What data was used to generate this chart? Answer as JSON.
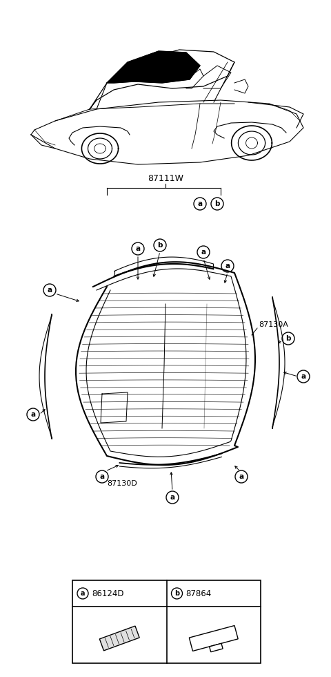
{
  "bg_color": "#ffffff",
  "part_numbers": {
    "main": "87111W",
    "right_moulding": "87130A",
    "bottom_moulding": "87130D",
    "part_a": "86124D",
    "part_b": "87864"
  }
}
